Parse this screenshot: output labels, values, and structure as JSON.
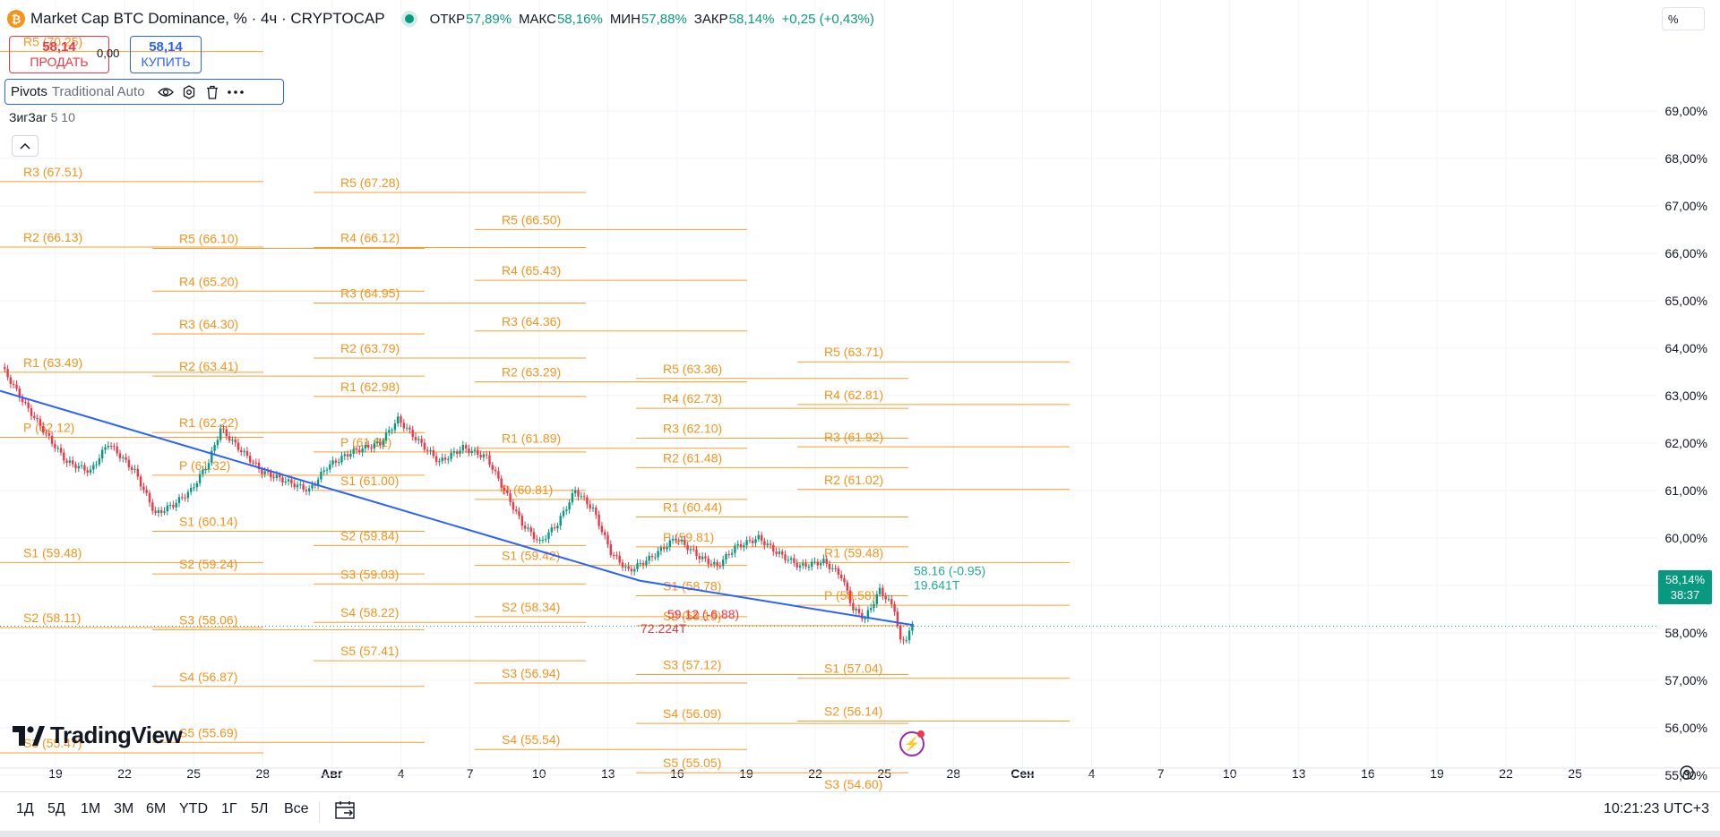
{
  "header": {
    "coin_glyph": "₿",
    "symbol": "Market Cap BTC Dominance, % · 4ч · CRYPTOCAP",
    "ohlc": [
      {
        "k": "ОТКР",
        "v": "57,89%"
      },
      {
        "k": "МАКС",
        "v": "58,16%"
      },
      {
        "k": "МИН",
        "v": "57,88%"
      },
      {
        "k": "ЗАКР",
        "v": "58,14%"
      },
      {
        "k": "",
        "v": "+0,25 (+0,43%)"
      }
    ]
  },
  "trade": {
    "sell_price": "58,14",
    "sell_label": "ПРОДАТЬ",
    "spread": "0,00",
    "buy_price": "58,14",
    "buy_label": "КУПИТЬ"
  },
  "indicator": {
    "name": "Pivots",
    "args": "Traditional Auto"
  },
  "zigzag": {
    "name": "ЗигЗаг",
    "args": "5 10"
  },
  "scale_mode": "%",
  "brand": "TradingView",
  "current_price": {
    "value": "58,14%",
    "timer": "38:37"
  },
  "timeframes": [
    "1Д",
    "5Д",
    "1М",
    "3М",
    "6М",
    "YTD",
    "1Г",
    "5Л",
    "Все"
  ],
  "clock": "10:21:23 UTC+3",
  "zigzag_labels": [
    {
      "text": "59.12 (-6.88)",
      "color": "#f23645",
      "price": 58.3,
      "x": 745
    },
    {
      "text": "72.224T",
      "color": "#f23645",
      "price": 58.0,
      "x": 715
    },
    {
      "text": "58.16 (-0.95)",
      "color": "#22ab94",
      "price": 59.21,
      "x": 1020
    },
    {
      "text": "19.641T",
      "color": "#22ab94",
      "price": 58.91,
      "x": 1020
    }
  ],
  "chart_data": {
    "type": "candlestick",
    "price_axis": [
      "69,00%",
      "68,00%",
      "67,00%",
      "66,00%",
      "65,00%",
      "64,00%",
      "63,00%",
      "62,00%",
      "61,00%",
      "60,00%",
      "59,00%",
      "58,00%",
      "57,00%",
      "56,00%",
      "55,00%"
    ],
    "time_axis": [
      "19",
      "22",
      "25",
      "28",
      "Авг",
      "4",
      "7",
      "10",
      "13",
      "16",
      "19",
      "22",
      "25",
      "28",
      "Сен",
      "4",
      "7",
      "10",
      "13",
      "16",
      "19",
      "22",
      "25"
    ],
    "ylim": [
      54.6,
      70.3
    ],
    "last_price": 58.14,
    "pivot_periods": [
      {
        "levels": [
          {
            "label": "R5 (70.25)",
            "price": 70.25
          },
          {
            "label": "R3 (67.51)",
            "price": 67.51
          },
          {
            "label": "R2 (66.13)",
            "price": 66.13
          },
          {
            "label": "R1 (63.49)",
            "price": 63.49
          },
          {
            "label": "P (62.12)",
            "price": 62.12
          },
          {
            "label": "S1 (59.48)",
            "price": 59.48
          },
          {
            "label": "S2 (58.11)",
            "price": 58.11
          },
          {
            "label": "S3 (55.47)",
            "price": 55.47
          }
        ]
      },
      {
        "levels": [
          {
            "label": "R5 (66.10)",
            "price": 66.1
          },
          {
            "label": "R4 (65.20)",
            "price": 65.2
          },
          {
            "label": "R3 (64.30)",
            "price": 64.3
          },
          {
            "label": "R2 (63.41)",
            "price": 63.41
          },
          {
            "label": "R1 (62.22)",
            "price": 62.22
          },
          {
            "label": "P (61.32)",
            "price": 61.32
          },
          {
            "label": "S1 (60.14)",
            "price": 60.14
          },
          {
            "label": "S2 (59.24)",
            "price": 59.24
          },
          {
            "label": "S3 (58.06)",
            "price": 58.06
          },
          {
            "label": "S4 (56.87)",
            "price": 56.87
          },
          {
            "label": "S5 (55.69)",
            "price": 55.69
          }
        ]
      },
      {
        "levels": [
          {
            "label": "R5 (67.28)",
            "price": 67.28
          },
          {
            "label": "R4 (66.12)",
            "price": 66.12
          },
          {
            "label": "R3 (64.95)",
            "price": 64.95
          },
          {
            "label": "R2 (63.79)",
            "price": 63.79
          },
          {
            "label": "R1 (62.98)",
            "price": 62.98
          },
          {
            "label": "P (61.81)",
            "price": 61.81
          },
          {
            "label": "S1 (61.00)",
            "price": 61.0
          },
          {
            "label": "S2 (59.84)",
            "price": 59.84
          },
          {
            "label": "S3 (59.03)",
            "price": 59.03
          },
          {
            "label": "S4 (58.22)",
            "price": 58.22
          },
          {
            "label": "S5 (57.41)",
            "price": 57.41
          }
        ]
      },
      {
        "levels": [
          {
            "label": "R5 (66.50)",
            "price": 66.5
          },
          {
            "label": "R4 (65.43)",
            "price": 65.43
          },
          {
            "label": "R3 (64.36)",
            "price": 64.36
          },
          {
            "label": "R2 (63.29)",
            "price": 63.29
          },
          {
            "label": "R1 (61.89)",
            "price": 61.89
          },
          {
            "label": "P (60.81)",
            "price": 60.81
          },
          {
            "label": "S1 (59.42)",
            "price": 59.42
          },
          {
            "label": "S2 (58.34)",
            "price": 58.34
          },
          {
            "label": "S3 (56.94)",
            "price": 56.94
          },
          {
            "label": "S4 (55.54)",
            "price": 55.54
          }
        ]
      },
      {
        "levels": [
          {
            "label": "R5 (63.36)",
            "price": 63.36
          },
          {
            "label": "R4 (62.73)",
            "price": 62.73
          },
          {
            "label": "R3 (62.10)",
            "price": 62.1
          },
          {
            "label": "R2 (61.48)",
            "price": 61.48
          },
          {
            "label": "R1 (60.44)",
            "price": 60.44
          },
          {
            "label": "P (59.81)",
            "price": 59.81
          },
          {
            "label": "S1 (58.78)",
            "price": 58.78
          },
          {
            "label": "S2 (58.15)",
            "price": 58.15
          },
          {
            "label": "S3 (57.12)",
            "price": 57.12
          },
          {
            "label": "S4 (56.09)",
            "price": 56.09
          },
          {
            "label": "S5 (55.05)",
            "price": 55.05
          }
        ]
      },
      {
        "levels": [
          {
            "label": "R5 (63.71)",
            "price": 63.71
          },
          {
            "label": "R4 (62.81)",
            "price": 62.81
          },
          {
            "label": "R3 (61.92)",
            "price": 61.92
          },
          {
            "label": "R2 (61.02)",
            "price": 61.02
          },
          {
            "label": "R1 (59.48)",
            "price": 59.48
          },
          {
            "label": "P (58.58)",
            "price": 58.58
          },
          {
            "label": "S1 (57.04)",
            "price": 57.04
          },
          {
            "label": "S2 (56.14)",
            "price": 56.14
          },
          {
            "label": "S3 (54.60)",
            "price": 54.6
          }
        ]
      }
    ],
    "zigzag_trend": [
      {
        "date": "Jul 16",
        "price": 63.1
      },
      {
        "date": "Aug 13",
        "price": 59.1
      },
      {
        "date": "Aug 25",
        "price": 58.16
      }
    ],
    "price_path": [
      [
        0,
        63.6
      ],
      [
        8,
        62.8
      ],
      [
        16,
        62.1
      ],
      [
        22,
        61.6
      ],
      [
        30,
        61.4
      ],
      [
        36,
        62.0
      ],
      [
        45,
        61.4
      ],
      [
        52,
        60.5
      ],
      [
        58,
        60.7
      ],
      [
        64,
        61.0
      ],
      [
        70,
        61.6
      ],
      [
        74,
        62.3
      ],
      [
        80,
        61.9
      ],
      [
        88,
        61.4
      ],
      [
        96,
        61.2
      ],
      [
        104,
        61.0
      ],
      [
        110,
        61.5
      ],
      [
        118,
        61.8
      ],
      [
        128,
        62.0
      ],
      [
        134,
        62.5
      ],
      [
        140,
        62.1
      ],
      [
        148,
        61.6
      ],
      [
        156,
        61.9
      ],
      [
        164,
        61.7
      ],
      [
        170,
        61.0
      ],
      [
        176,
        60.3
      ],
      [
        182,
        59.9
      ],
      [
        188,
        60.3
      ],
      [
        194,
        61.0
      ],
      [
        200,
        60.6
      ],
      [
        206,
        59.7
      ],
      [
        212,
        59.3
      ],
      [
        220,
        59.6
      ],
      [
        228,
        60.0
      ],
      [
        236,
        59.6
      ],
      [
        242,
        59.4
      ],
      [
        248,
        59.8
      ],
      [
        256,
        60.0
      ],
      [
        262,
        59.7
      ],
      [
        270,
        59.4
      ],
      [
        278,
        59.5
      ],
      [
        284,
        59.2
      ],
      [
        288,
        58.5
      ],
      [
        292,
        58.3
      ],
      [
        297,
        58.9
      ],
      [
        302,
        58.5
      ],
      [
        304,
        57.8
      ],
      [
        306,
        57.9
      ],
      [
        308,
        58.14
      ]
    ]
  }
}
